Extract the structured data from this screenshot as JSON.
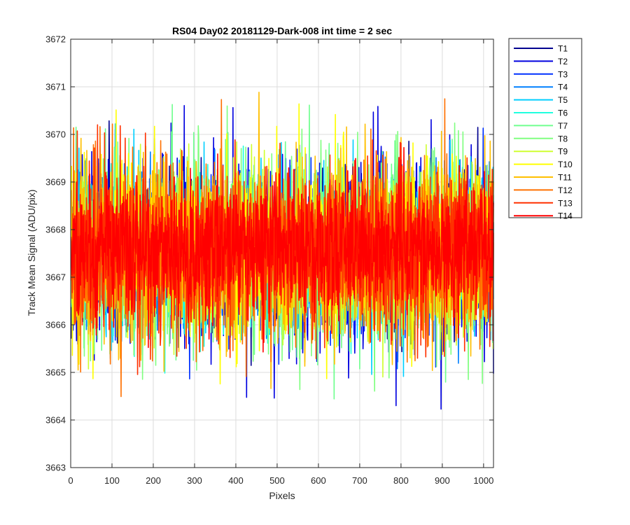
{
  "chart_data": {
    "type": "line",
    "title": "RS04 Day02 20181129-Dark-008 int time = 2 sec",
    "xlabel": "Pixels",
    "ylabel": "Track Mean Signal (ADU/pix)",
    "xlim": [
      0,
      1024
    ],
    "ylim": [
      3663,
      3672
    ],
    "xticks": [
      0,
      100,
      200,
      300,
      400,
      500,
      600,
      700,
      800,
      900,
      1000
    ],
    "yticks": [
      3663,
      3664,
      3665,
      3666,
      3667,
      3668,
      3669,
      3670,
      3671,
      3672
    ],
    "grid": true,
    "legend_position": "outside-top-right",
    "x": {
      "start": 1,
      "end": 1024,
      "step": 1
    },
    "series": [
      {
        "name": "T1",
        "color": "#00008F",
        "mean": 3667.5,
        "min": 3665.0,
        "max": 3670.3
      },
      {
        "name": "T2",
        "color": "#0000DF",
        "mean": 3667.5,
        "min": 3663.45,
        "max": 3670.7
      },
      {
        "name": "T3",
        "color": "#0030FF",
        "mean": 3667.5,
        "min": 3664.8,
        "max": 3670.6
      },
      {
        "name": "T4",
        "color": "#0080FF",
        "mean": 3667.5,
        "min": 3664.8,
        "max": 3670.5
      },
      {
        "name": "T5",
        "color": "#00CFFF",
        "mean": 3667.5,
        "min": 3664.4,
        "max": 3670.4
      },
      {
        "name": "T6",
        "color": "#20FFDF",
        "mean": 3667.5,
        "min": 3664.9,
        "max": 3670.5
      },
      {
        "name": "T7",
        "color": "#70FF8F",
        "mean": 3667.5,
        "min": 3664.2,
        "max": 3670.7
      },
      {
        "name": "T8",
        "color": "#80FF80",
        "mean": 3667.5,
        "min": 3663.6,
        "max": 3670.6
      },
      {
        "name": "T9",
        "color": "#CFFF30",
        "mean": 3667.5,
        "min": 3664.5,
        "max": 3670.8
      },
      {
        "name": "T10",
        "color": "#FFFF00",
        "mean": 3667.5,
        "min": 3664.6,
        "max": 3671.05
      },
      {
        "name": "T11",
        "color": "#FFBF00",
        "mean": 3667.5,
        "min": 3664.0,
        "max": 3671.0
      },
      {
        "name": "T12",
        "color": "#FF7000",
        "mean": 3667.5,
        "min": 3664.4,
        "max": 3670.9
      },
      {
        "name": "T13",
        "color": "#FF3000",
        "mean": 3667.6,
        "min": 3664.4,
        "max": 3670.5
      },
      {
        "name": "T14",
        "color": "#FF0000",
        "mean": 3667.6,
        "min": 3665.3,
        "max": 3670.6
      }
    ]
  }
}
